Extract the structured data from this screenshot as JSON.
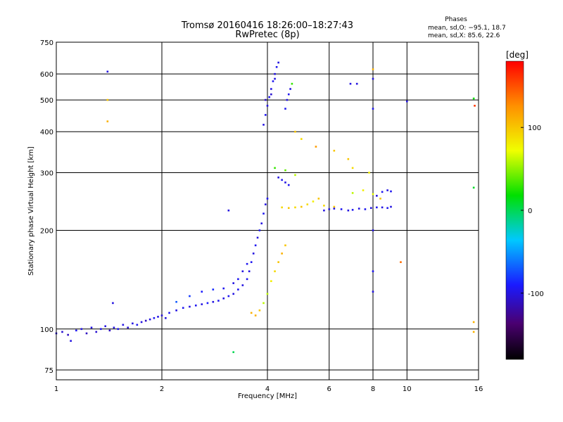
{
  "chart_data": {
    "type": "scatter",
    "title": "Tromsø 20160416 18:26:00–18:27:43",
    "subtitle": "RwPretec (8p)",
    "xlabel": "Frequency [MHz]",
    "ylabel": "Stationary phase Virtual Height [km]",
    "x_scale": "log",
    "y_scale": "log",
    "xlim": [
      1,
      16
    ],
    "ylim": [
      70,
      750
    ],
    "grid": true,
    "x_ticks": [
      {
        "v": 1,
        "label": "1"
      },
      {
        "v": 2,
        "label": "2"
      },
      {
        "v": 4,
        "label": "4"
      },
      {
        "v": 6,
        "label": "6"
      },
      {
        "v": 8,
        "label": "8"
      },
      {
        "v": 10,
        "label": "10"
      },
      {
        "v": 16,
        "label": "16"
      }
    ],
    "y_ticks": [
      {
        "v": 75,
        "label": "75"
      },
      {
        "v": 100,
        "label": "100"
      },
      {
        "v": 200,
        "label": "200"
      },
      {
        "v": 300,
        "label": "300"
      },
      {
        "v": 400,
        "label": "400"
      },
      {
        "v": 500,
        "label": "500"
      },
      {
        "v": 600,
        "label": "600"
      },
      {
        "v": 750,
        "label": "750"
      }
    ],
    "phase_stats": {
      "header": "Phases",
      "line_o": "mean, sd,O: −95.1, 18.7",
      "line_x": "mean, sd,X:  85.6, 22.6"
    },
    "colorbar": {
      "label": "[deg]",
      "range": [
        -180,
        180
      ],
      "ticks": [
        {
          "v": 100,
          "label": "100"
        },
        {
          "v": 0,
          "label": "0"
        },
        {
          "v": -100,
          "label": "-100"
        }
      ]
    },
    "series": [
      {
        "points": [
          [
            1.0,
            97,
            -100
          ],
          [
            1.04,
            98,
            -105
          ],
          [
            1.08,
            96,
            -110
          ],
          [
            1.1,
            92,
            -100
          ],
          [
            1.14,
            99,
            -95
          ],
          [
            1.18,
            100,
            -100
          ],
          [
            1.22,
            97,
            -110
          ],
          [
            1.26,
            101,
            -100
          ],
          [
            1.3,
            98,
            -105
          ],
          [
            1.34,
            100,
            -95
          ],
          [
            1.38,
            102,
            -100
          ],
          [
            1.42,
            99,
            -110
          ],
          [
            1.46,
            101,
            -100
          ],
          [
            1.5,
            100,
            -95
          ],
          [
            1.55,
            103,
            -100
          ],
          [
            1.6,
            101,
            -105
          ],
          [
            1.65,
            104,
            -100
          ],
          [
            1.7,
            103,
            -95
          ],
          [
            1.75,
            105,
            -100
          ],
          [
            1.8,
            106,
            -110
          ],
          [
            1.85,
            107,
            -100
          ],
          [
            1.9,
            108,
            -95
          ],
          [
            1.95,
            109,
            -100
          ],
          [
            2.0,
            110,
            -105
          ],
          [
            2.05,
            108,
            -100
          ],
          [
            2.1,
            112,
            -95
          ],
          [
            2.2,
            114,
            -100
          ],
          [
            2.3,
            116,
            -95
          ],
          [
            2.4,
            117,
            -100
          ],
          [
            2.5,
            118,
            -95
          ],
          [
            2.6,
            119,
            -100
          ],
          [
            2.7,
            120,
            -90
          ],
          [
            2.8,
            121,
            -100
          ],
          [
            2.9,
            122,
            -95
          ],
          [
            3.0,
            124,
            -100
          ],
          [
            3.1,
            126,
            -95
          ],
          [
            3.2,
            128,
            -100
          ],
          [
            3.3,
            132,
            -95
          ],
          [
            3.4,
            136,
            -100
          ],
          [
            3.5,
            142,
            -95
          ],
          [
            3.55,
            150,
            -100
          ],
          [
            3.6,
            160,
            -95
          ],
          [
            3.65,
            170,
            -100
          ],
          [
            3.7,
            180,
            -95
          ],
          [
            3.75,
            190,
            -100
          ],
          [
            3.8,
            200,
            -95
          ],
          [
            3.85,
            210,
            -100
          ],
          [
            3.9,
            225,
            -95
          ],
          [
            3.95,
            240,
            -100
          ],
          [
            4.0,
            250,
            -95
          ],
          [
            2.2,
            121,
            -70
          ],
          [
            2.4,
            126,
            -80
          ],
          [
            2.6,
            130,
            -90
          ],
          [
            2.8,
            132,
            -85
          ],
          [
            3.0,
            133,
            -95
          ],
          [
            3.2,
            138,
            -100
          ],
          [
            3.3,
            142,
            -95
          ],
          [
            3.4,
            150,
            -100
          ],
          [
            3.5,
            158,
            -95
          ],
          [
            3.6,
            112,
            110
          ],
          [
            3.7,
            110,
            110
          ],
          [
            3.8,
            114,
            100
          ],
          [
            3.9,
            120,
            60
          ],
          [
            4.0,
            128,
            60
          ],
          [
            4.1,
            140,
            80
          ],
          [
            4.2,
            150,
            90
          ],
          [
            4.3,
            160,
            100
          ],
          [
            4.4,
            170,
            110
          ],
          [
            4.5,
            180,
            100
          ],
          [
            3.9,
            420,
            -100
          ],
          [
            3.95,
            450,
            -95
          ],
          [
            4.0,
            480,
            -100
          ],
          [
            4.05,
            510,
            -95
          ],
          [
            4.1,
            540,
            -100
          ],
          [
            4.15,
            570,
            -95
          ],
          [
            4.2,
            600,
            -100
          ],
          [
            4.25,
            630,
            -95
          ],
          [
            4.3,
            650,
            -100
          ],
          [
            3.95,
            500,
            -110
          ],
          [
            4.1,
            520,
            -105
          ],
          [
            4.2,
            580,
            -100
          ],
          [
            4.5,
            470,
            -95
          ],
          [
            4.55,
            500,
            -100
          ],
          [
            4.6,
            520,
            -95
          ],
          [
            4.65,
            540,
            -100
          ],
          [
            4.7,
            560,
            30
          ],
          [
            4.3,
            290,
            -100
          ],
          [
            4.4,
            285,
            -95
          ],
          [
            4.5,
            280,
            -100
          ],
          [
            4.6,
            275,
            -95
          ],
          [
            4.4,
            235,
            90
          ],
          [
            4.6,
            234,
            100
          ],
          [
            4.8,
            235,
            90
          ],
          [
            5.0,
            236,
            100
          ],
          [
            5.2,
            240,
            90
          ],
          [
            5.4,
            245,
            80
          ],
          [
            5.6,
            250,
            100
          ],
          [
            5.8,
            238,
            90
          ],
          [
            6.0,
            232,
            95
          ],
          [
            6.2,
            236,
            100
          ],
          [
            5.8,
            230,
            -100
          ],
          [
            6.0,
            232,
            -95
          ],
          [
            6.2,
            233,
            -100
          ],
          [
            6.5,
            232,
            -95
          ],
          [
            6.8,
            230,
            -100
          ],
          [
            7.0,
            231,
            -95
          ],
          [
            7.3,
            233,
            -100
          ],
          [
            7.6,
            232,
            -95
          ],
          [
            7.9,
            234,
            -100
          ],
          [
            8.2,
            235,
            -95
          ],
          [
            8.5,
            235,
            -100
          ],
          [
            8.8,
            234,
            -95
          ],
          [
            9.0,
            236,
            -100
          ],
          [
            8.2,
            255,
            -100
          ],
          [
            8.5,
            262,
            -95
          ],
          [
            8.8,
            265,
            -100
          ],
          [
            9.0,
            263,
            -95
          ],
          [
            7.0,
            260,
            60
          ],
          [
            7.5,
            265,
            80
          ],
          [
            8.0,
            258,
            70
          ],
          [
            8.4,
            250,
            100
          ],
          [
            5.0,
            380,
            90
          ],
          [
            4.8,
            400,
            100
          ],
          [
            5.5,
            360,
            120
          ],
          [
            6.2,
            350,
            100
          ],
          [
            6.8,
            330,
            100
          ],
          [
            4.2,
            310,
            30
          ],
          [
            4.5,
            305,
            40
          ],
          [
            4.8,
            295,
            60
          ],
          [
            7.0,
            310,
            90
          ],
          [
            7.8,
            300,
            80
          ],
          [
            1.4,
            610,
            -100
          ],
          [
            1.4,
            500,
            100
          ],
          [
            1.4,
            430,
            110
          ],
          [
            1.45,
            120,
            -100
          ],
          [
            3.1,
            230,
            -100
          ],
          [
            3.2,
            85,
            0
          ],
          [
            8.0,
            620,
            110
          ],
          [
            8.0,
            580,
            -100
          ],
          [
            8.0,
            470,
            -95
          ],
          [
            7.2,
            560,
            -100
          ],
          [
            10.0,
            495,
            -100
          ],
          [
            15.6,
            480,
            160
          ],
          [
            15.5,
            505,
            20
          ],
          [
            15.5,
            270,
            10
          ],
          [
            15.5,
            105,
            110
          ],
          [
            15.5,
            98,
            110
          ],
          [
            9.6,
            160,
            140
          ],
          [
            6.9,
            560,
            -100
          ],
          [
            8.0,
            130,
            -100
          ],
          [
            8.0,
            150,
            -95
          ],
          [
            8.0,
            200,
            -100
          ]
        ]
      }
    ]
  }
}
